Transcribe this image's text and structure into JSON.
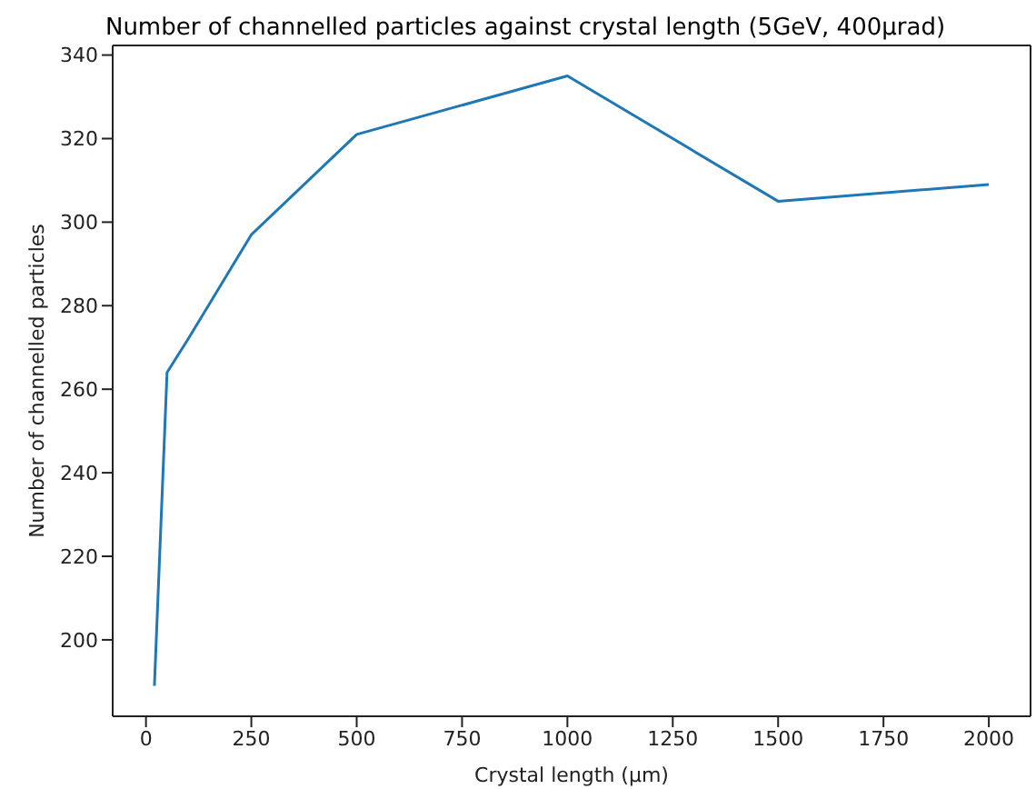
{
  "chart_data": {
    "type": "line",
    "title": "Number of channelled particles against crystal length (5GeV, 400μrad)",
    "xlabel": "Crystal length (μm)",
    "ylabel": "Number of channelled particles",
    "x": [
      20,
      50,
      100,
      250,
      500,
      1000,
      1500,
      2000
    ],
    "series": [
      {
        "color": "#1f77b4",
        "values": [
          189,
          264,
          272,
          297,
          321,
          335,
          305,
          309
        ]
      }
    ],
    "xlim": [
      -79,
      2099
    ],
    "xticks": [
      0,
      250,
      500,
      750,
      1000,
      1250,
      1500,
      1750,
      2000
    ],
    "ylim": [
      181.7,
      342.3
    ],
    "yticks": [
      200,
      220,
      240,
      260,
      280,
      300,
      320,
      340
    ],
    "grid": false,
    "legend": false,
    "marker": "none",
    "line_style": "solid"
  }
}
